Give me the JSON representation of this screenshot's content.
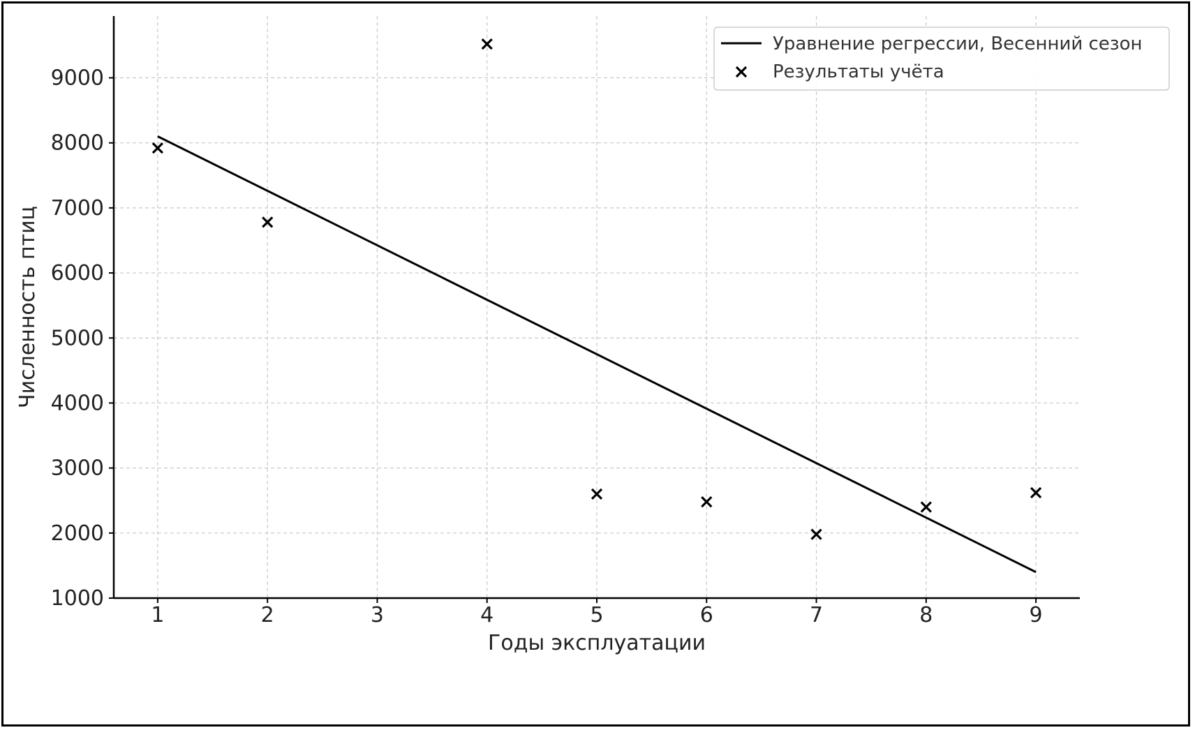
{
  "chart_data": {
    "type": "scatter",
    "title": "",
    "xlabel": "Годы эксплуатации",
    "ylabel": "Численность птиц",
    "xlim": [
      0.6,
      9.4
    ],
    "ylim": [
      1000,
      9950
    ],
    "x_ticks": [
      1,
      2,
      3,
      4,
      5,
      6,
      7,
      8,
      9
    ],
    "y_ticks": [
      1000,
      2000,
      3000,
      4000,
      5000,
      6000,
      7000,
      8000,
      9000
    ],
    "grid": true,
    "legend_position": "top-right",
    "series": [
      {
        "name": "Уравнение регрессии, Весенний сезон",
        "kind": "line",
        "color": "#000000",
        "x": [
          1,
          9
        ],
        "y": [
          8100,
          1400
        ]
      },
      {
        "name": "Результаты учёта",
        "kind": "scatter",
        "marker": "x",
        "color": "#000000",
        "x": [
          1,
          2,
          4,
          5,
          6,
          7,
          8,
          9
        ],
        "y": [
          7920,
          6780,
          9520,
          2600,
          2480,
          1980,
          2400,
          2620
        ]
      }
    ]
  }
}
